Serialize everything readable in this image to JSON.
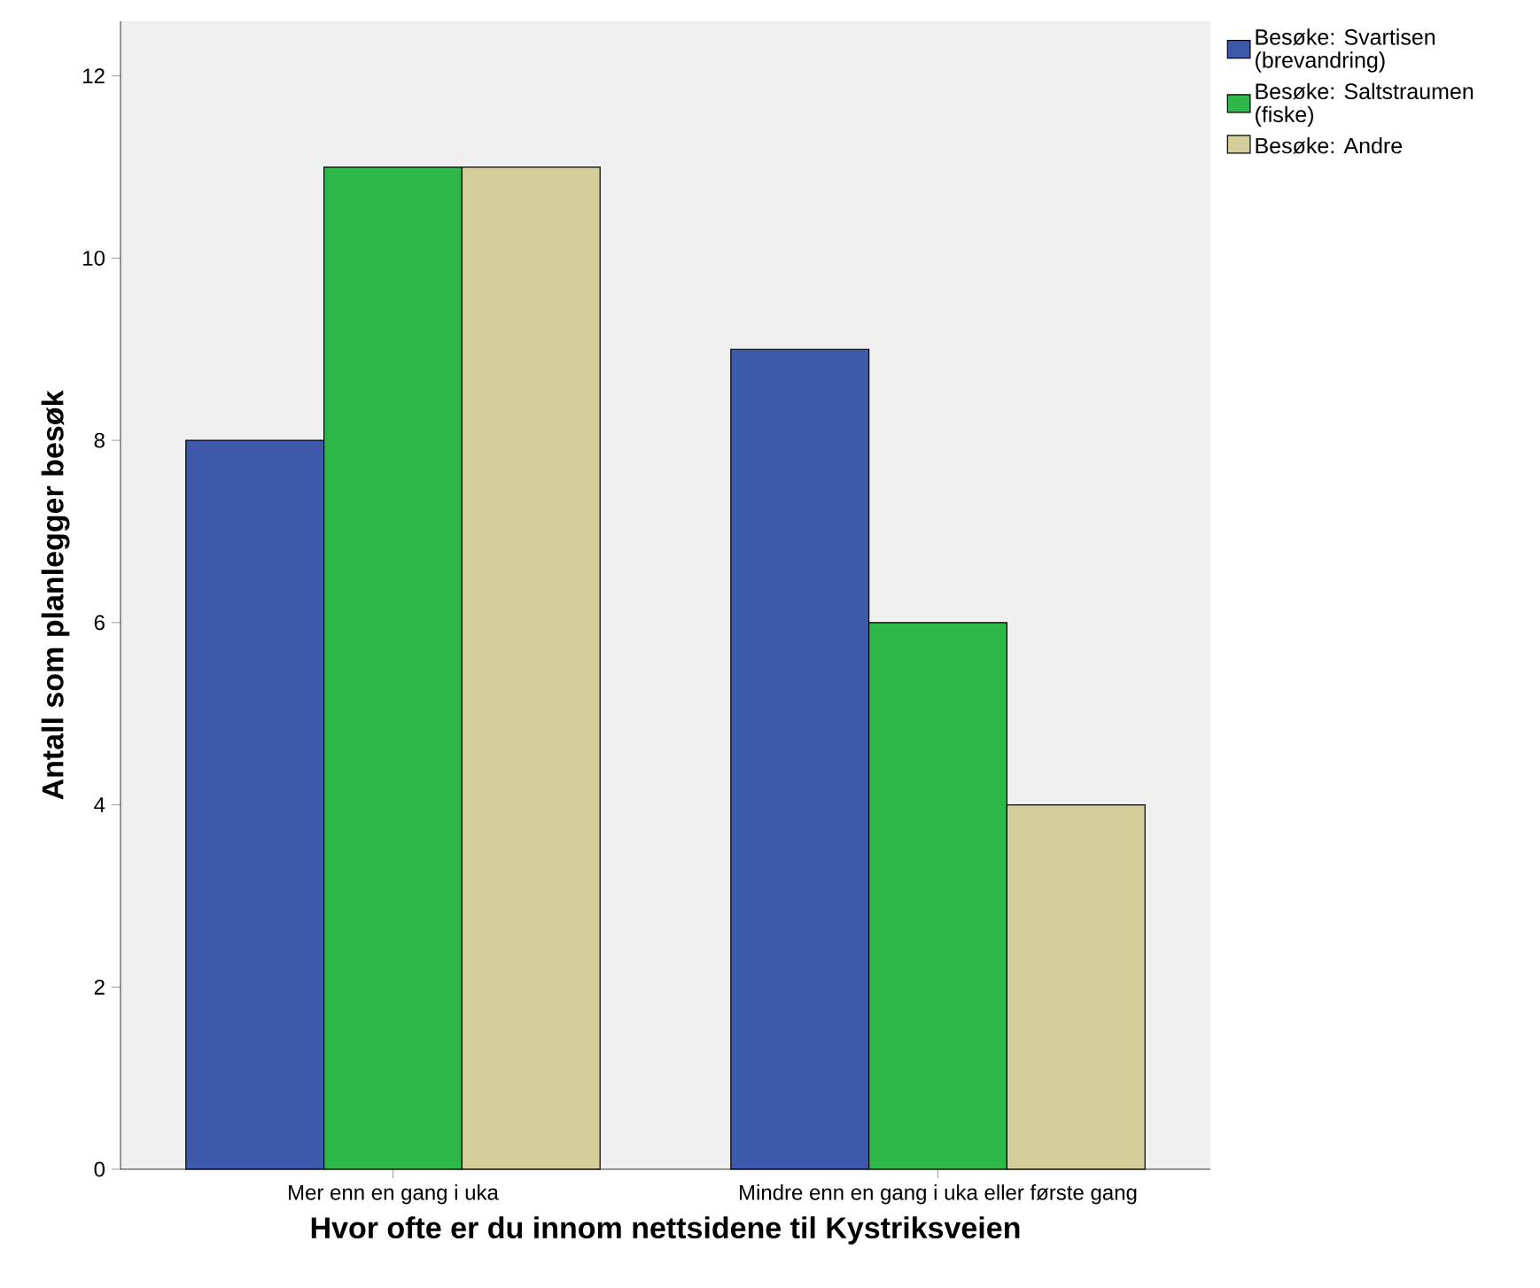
{
  "chart_data": {
    "type": "bar",
    "xlabel": "Hvor ofte er du innom nettsidene til Kystriksveien",
    "ylabel": "Antall som planlegger besøk",
    "categories": [
      "Mer enn en gang i uka",
      "Mindre enn en gang i uka eller første gang"
    ],
    "series": [
      {
        "name": "Besøke: Svartisen (brevandring)",
        "color": "#3e58ac",
        "values": [
          8,
          9
        ]
      },
      {
        "name": "Besøke: Saltstraumen (fiske)",
        "color": "#2fb84a",
        "values": [
          11,
          6
        ]
      },
      {
        "name": "Besøke: Andre",
        "color": "#d4cf9a",
        "values": [
          11,
          4
        ]
      }
    ],
    "ylim": [
      0,
      12.6
    ],
    "yticks": [
      0,
      2,
      4,
      6,
      8,
      10,
      12
    ],
    "grid": false,
    "legend": "top right"
  }
}
